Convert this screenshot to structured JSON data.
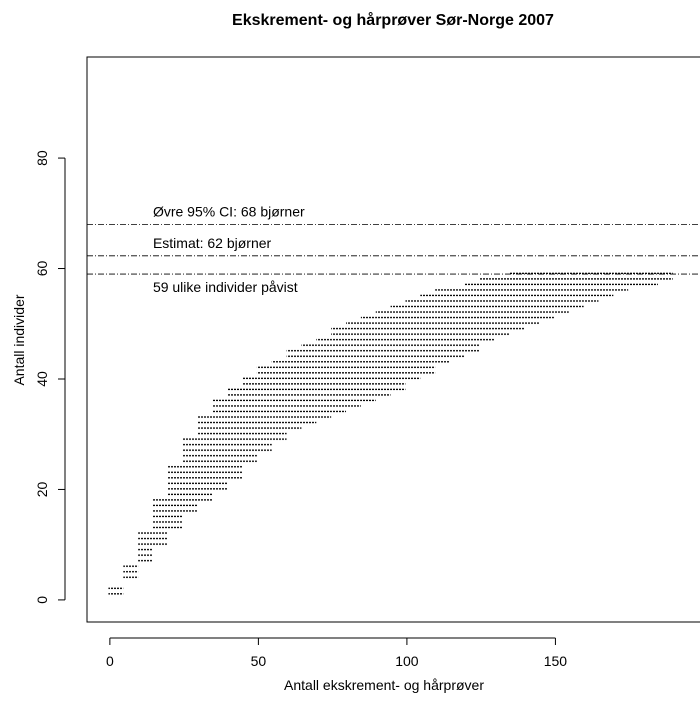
{
  "chart_data": {
    "type": "range",
    "title": "Ekskrement- og hårprøver Sør-Norge 2007",
    "x_label": "Antall ekskrement- og hårprøver",
    "y_label": "Antall individer",
    "x": [
      2,
      7,
      12,
      17,
      22,
      27,
      32,
      37,
      42,
      47,
      52,
      57,
      62,
      67,
      72,
      77,
      82,
      87,
      92,
      97,
      102,
      107,
      112,
      117,
      122,
      127,
      132,
      137,
      142,
      147,
      152,
      157,
      162,
      167,
      172,
      177,
      182,
      187
    ],
    "low": [
      1,
      4,
      7,
      10,
      13,
      16,
      18,
      20,
      22,
      25,
      27,
      29,
      31,
      32,
      33,
      34,
      35,
      36,
      37,
      38,
      40,
      41,
      43,
      44,
      45,
      47,
      48,
      49,
      50,
      51,
      52,
      53,
      54,
      55,
      56,
      57,
      57,
      58
    ],
    "high": [
      2,
      6,
      12,
      18,
      24,
      29,
      33,
      36,
      38,
      40,
      42,
      43,
      45,
      46,
      47,
      49,
      50,
      51,
      52,
      53,
      54,
      55,
      56,
      56,
      57,
      58,
      58,
      59,
      59,
      59,
      59,
      59,
      59,
      59,
      59,
      59,
      59,
      59
    ],
    "color": "#000000",
    "hlines": [
      68,
      62.3,
      59
    ],
    "annotations": [
      "Øvre 95% CI: 68 bjørner",
      "Estimat: 62 bjørner",
      "59 ulike individer påvist"
    ],
    "xlim": [
      -7.7,
      198
    ],
    "ylim": [
      -4,
      98.3
    ],
    "xticks": [
      0,
      50,
      100,
      150
    ],
    "yticks": [
      0,
      20,
      40,
      60,
      80
    ]
  }
}
